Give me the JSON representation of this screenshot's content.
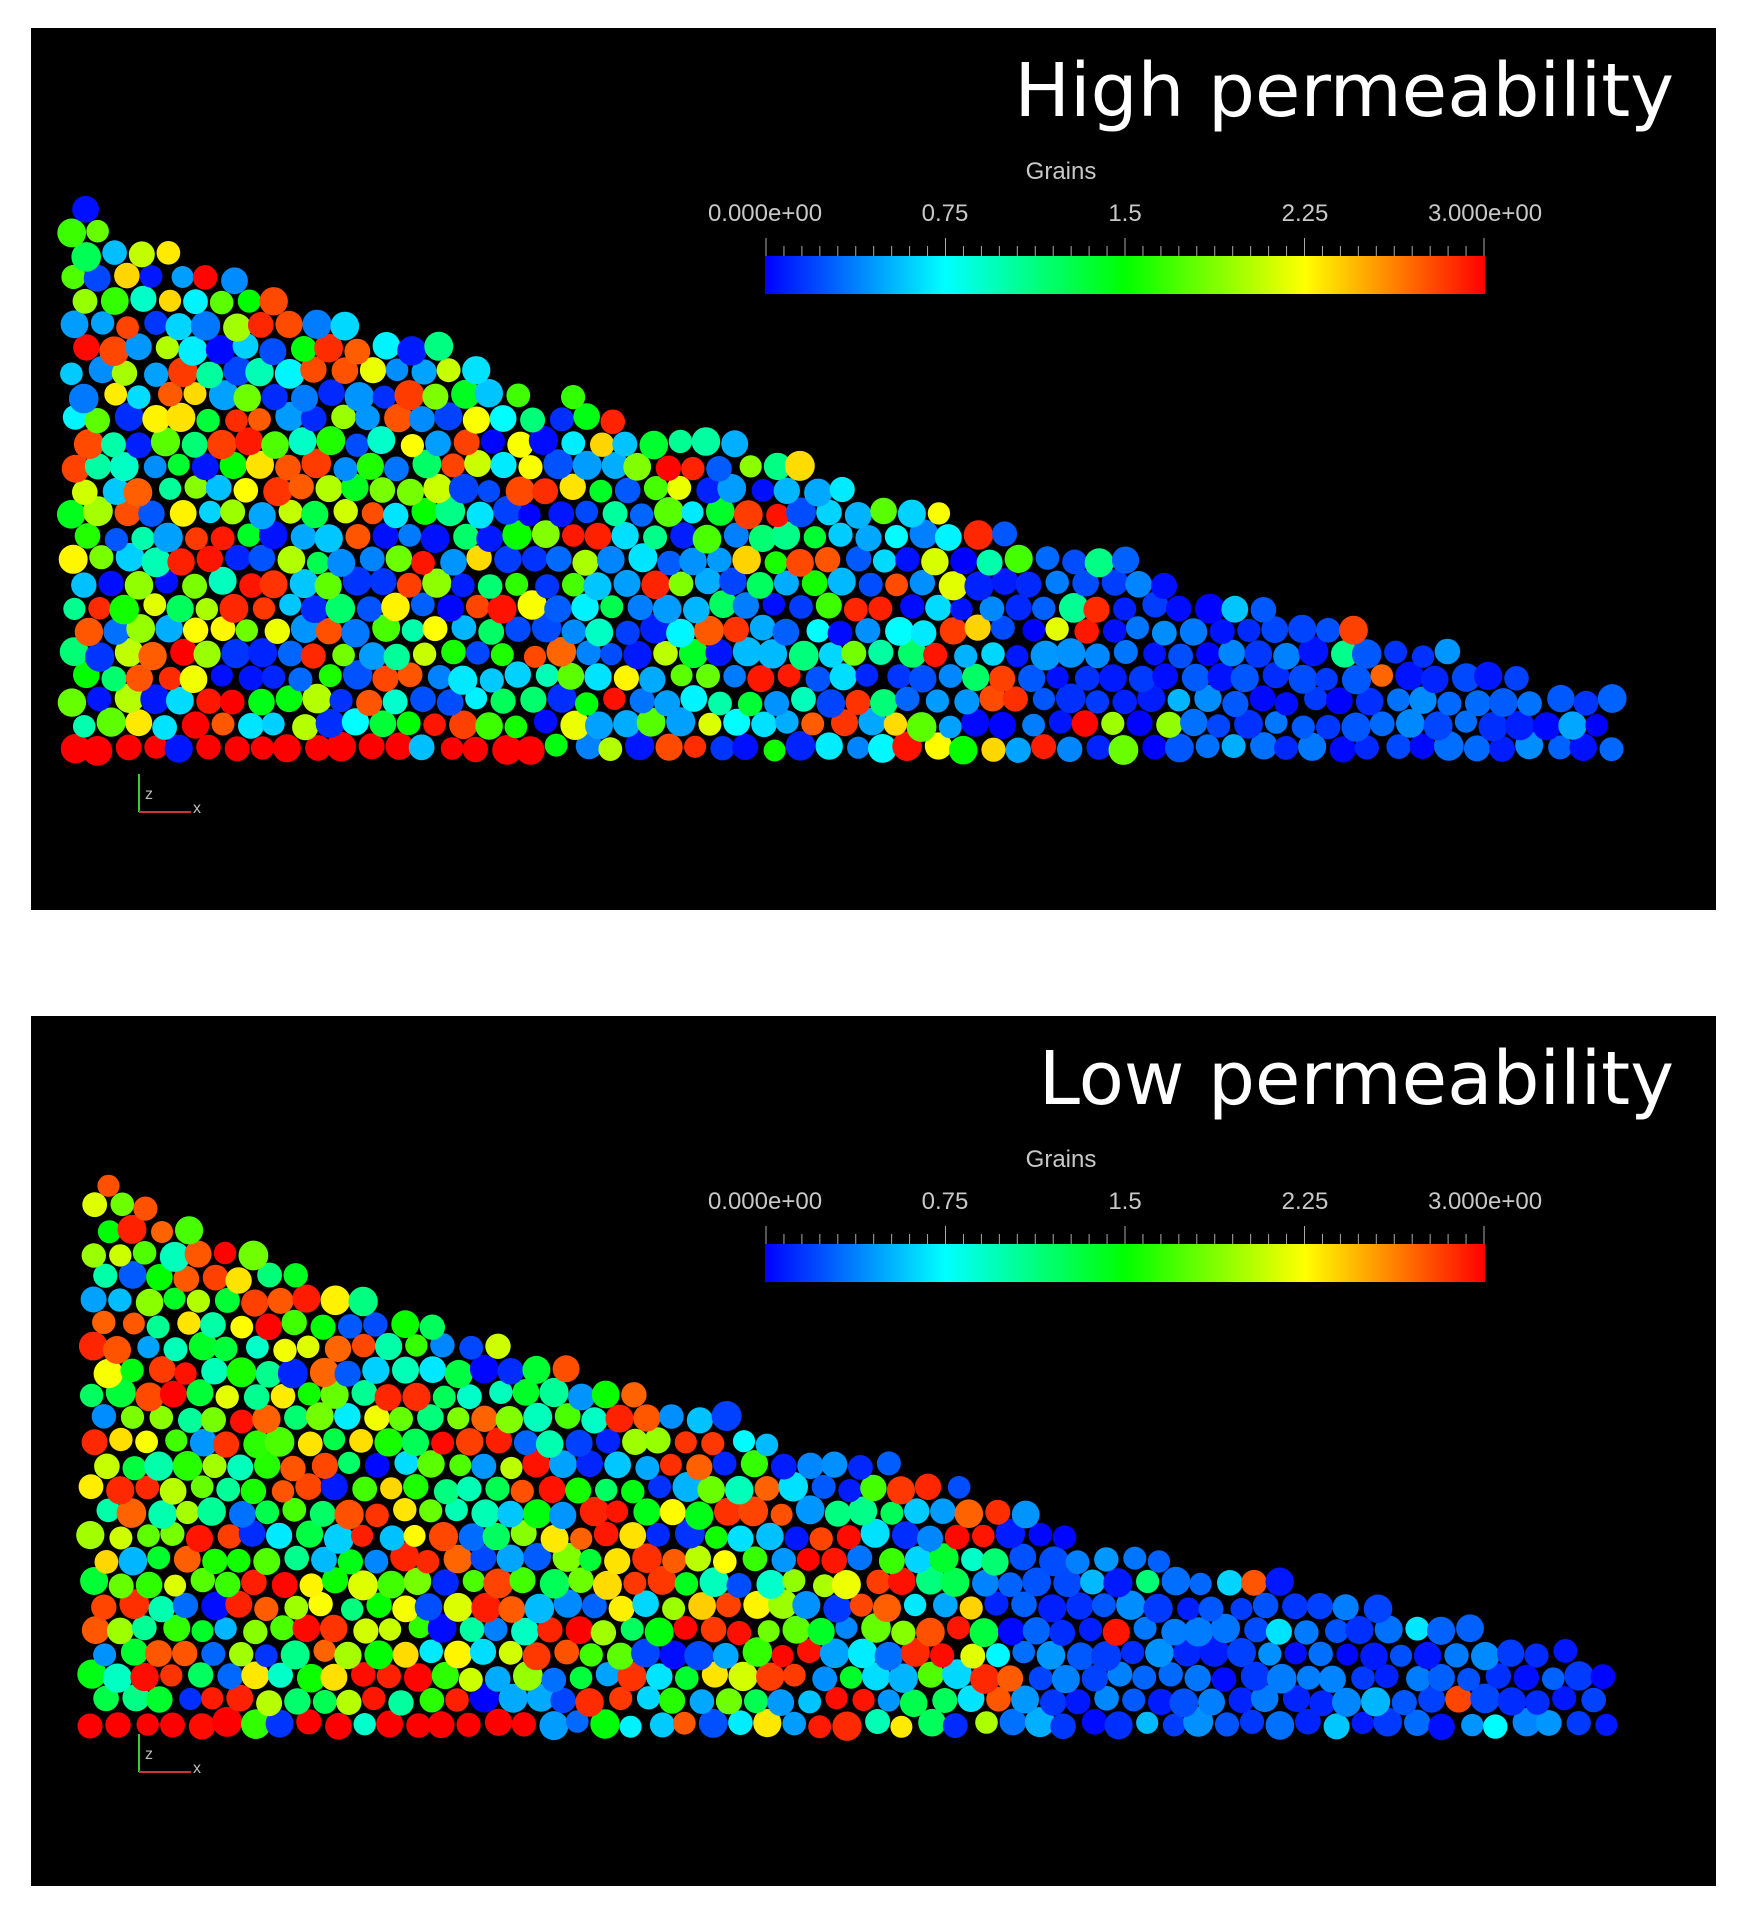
{
  "colorbar_stops": [
    "#0000ff",
    "#00ffff",
    "#00ff00",
    "#ffff00",
    "#ff0000"
  ],
  "panels": [
    {
      "title": "High permeability",
      "colorbar": {
        "title": "Grains",
        "ticks": [
          "0.000e+00",
          "0.75",
          "1.5",
          "2.25",
          "3.000e+00"
        ],
        "range": [
          0,
          3
        ]
      },
      "axes": {
        "z": "z",
        "x": "x"
      }
    },
    {
      "title": "Low permeability",
      "colorbar": {
        "title": "Grains",
        "ticks": [
          "0.000e+00",
          "0.75",
          "1.5",
          "2.25",
          "3.000e+00"
        ],
        "range": [
          0,
          3
        ]
      },
      "axes": {
        "z": "z",
        "x": "x"
      }
    }
  ]
}
